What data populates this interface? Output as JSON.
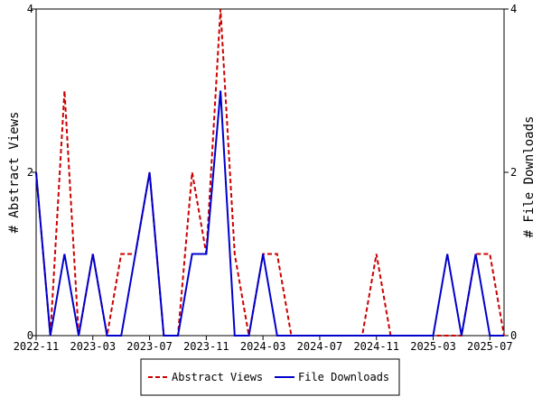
{
  "chart_data": {
    "type": "line",
    "title": "",
    "x_tick_labels": [
      "2022-11",
      "2023-03",
      "2023-07",
      "2023-11",
      "2024-03",
      "2024-07",
      "2024-11",
      "2025-03",
      "2025-07"
    ],
    "x_tick_months": [
      0,
      4,
      8,
      12,
      16,
      20,
      24,
      28,
      32
    ],
    "x_range_months": [
      0,
      33
    ],
    "y_left": {
      "label": "# Abstract Views",
      "range": [
        0,
        4
      ],
      "ticks": [
        "0",
        "2",
        "4"
      ]
    },
    "y_right": {
      "label": "# File Downloads",
      "range": [
        0,
        4
      ],
      "ticks": [
        "0",
        "2",
        "4"
      ]
    },
    "grid": false,
    "legend_position": "bottom",
    "series": [
      {
        "name": "Abstract Views",
        "color": "#cc0000",
        "dash": "dashed",
        "axis": "left",
        "values": [
          2,
          0,
          3,
          0,
          1,
          0,
          1,
          1,
          2,
          0,
          0,
          2,
          1,
          4,
          1,
          0,
          1,
          1,
          0,
          0,
          0,
          0,
          0,
          0,
          1,
          0,
          0,
          0,
          0,
          0,
          0,
          1,
          1,
          0
        ]
      },
      {
        "name": "File Downloads",
        "color": "#0000cc",
        "dash": "solid",
        "axis": "right",
        "values": [
          2,
          0,
          1,
          0,
          1,
          0,
          0,
          1,
          2,
          0,
          0,
          1,
          1,
          3,
          0,
          0,
          1,
          0,
          0,
          0,
          0,
          0,
          0,
          0,
          0,
          0,
          0,
          0,
          0,
          1,
          0,
          1,
          0,
          0
        ]
      }
    ]
  }
}
